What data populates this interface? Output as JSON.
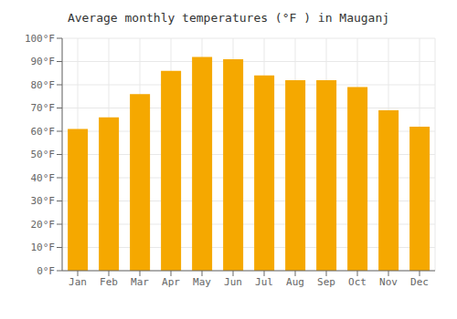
{
  "chart_data": {
    "type": "bar",
    "title": "Average monthly temperatures (°F ) in Mauganj",
    "categories": [
      "Jan",
      "Feb",
      "Mar",
      "Apr",
      "May",
      "Jun",
      "Jul",
      "Aug",
      "Sep",
      "Oct",
      "Nov",
      "Dec"
    ],
    "values": [
      61,
      66,
      76,
      86,
      92,
      91,
      84,
      82,
      82,
      79,
      69,
      62
    ],
    "color": "#F5A800",
    "ylim": [
      0,
      100
    ],
    "yticks": [
      {
        "value": 0,
        "label": "0°F"
      },
      {
        "value": 10,
        "label": "10°F"
      },
      {
        "value": 20,
        "label": "20°F"
      },
      {
        "value": 30,
        "label": "30°F"
      },
      {
        "value": 40,
        "label": "40°F"
      },
      {
        "value": 50,
        "label": "50°F"
      },
      {
        "value": 60,
        "label": "60°F"
      },
      {
        "value": 70,
        "label": "70°F"
      },
      {
        "value": 80,
        "label": "80°F"
      },
      {
        "value": 90,
        "label": "90°F"
      },
      {
        "value": 100,
        "label": "100°F"
      }
    ],
    "grid": true
  }
}
